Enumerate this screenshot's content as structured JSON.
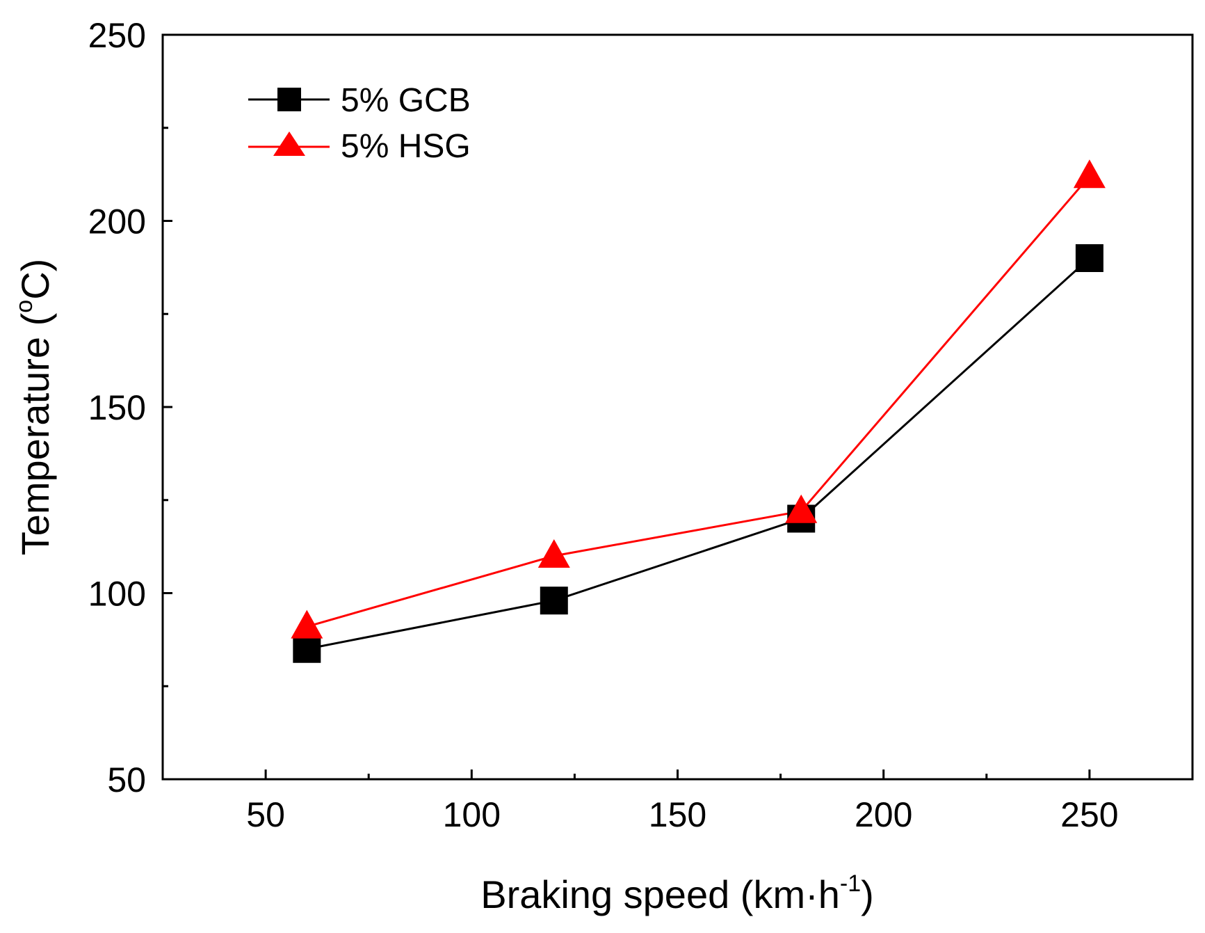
{
  "chart_data": {
    "type": "line",
    "title": "",
    "xlabel_main": "Braking speed (km·h",
    "xlabel_sup": "-1",
    "xlabel_close": ")",
    "ylabel_main": "Temperature (",
    "ylabel_sup": "o",
    "ylabel_close": "C)",
    "xlim": [
      25,
      275
    ],
    "ylim": [
      50,
      250
    ],
    "xticks": [
      50,
      100,
      150,
      200,
      250
    ],
    "xticks_minor": [
      75,
      125,
      175,
      225
    ],
    "yticks": [
      50,
      100,
      150,
      200,
      250
    ],
    "yticks_minor": [
      75,
      125,
      175,
      225
    ],
    "series": [
      {
        "name": "5% GCB",
        "color": "#000000",
        "marker": "square",
        "x": [
          60,
          120,
          180,
          250
        ],
        "y": [
          85,
          98,
          120,
          190
        ]
      },
      {
        "name": "5% HSG",
        "color": "#ff0000",
        "marker": "triangle",
        "x": [
          60,
          120,
          180,
          250
        ],
        "y": [
          91,
          110,
          122,
          212
        ]
      }
    ],
    "legend_position": "top-left"
  }
}
